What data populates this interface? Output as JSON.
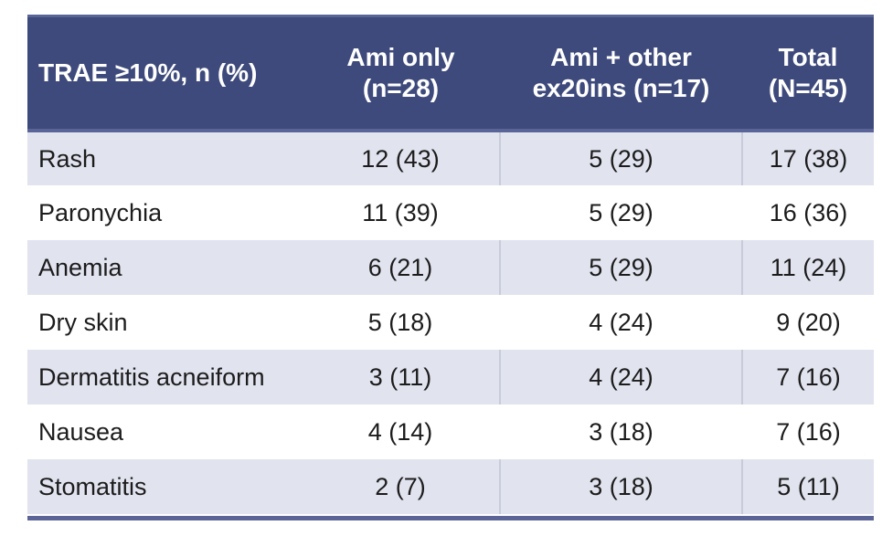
{
  "colors": {
    "header_bg": "#3e4a7b",
    "header_text": "#ffffff",
    "accent_rule": "#5a6496",
    "row_shaded_bg": "#e1e3ef",
    "row_plain_bg": "#ffffff",
    "body_text": "#1c1c1c",
    "column_separator": "#c8cbdb"
  },
  "table": {
    "header": {
      "col1": {
        "line1": "TRAE ≥10%, n (%)"
      },
      "col2": {
        "line1": "Ami only",
        "line2": "(n=28)"
      },
      "col3": {
        "line1": "Ami + other",
        "line2": "ex20ins (n=17)"
      },
      "col4": {
        "line1": "Total",
        "line2": "(N=45)"
      }
    },
    "rows": [
      {
        "label": "Rash",
        "ami_only": "12 (43)",
        "ami_other": "5 (29)",
        "total": "17 (38)"
      },
      {
        "label": "Paronychia",
        "ami_only": "11 (39)",
        "ami_other": "5 (29)",
        "total": "16 (36)"
      },
      {
        "label": "Anemia",
        "ami_only": "6 (21)",
        "ami_other": "5 (29)",
        "total": "11 (24)"
      },
      {
        "label": "Dry skin",
        "ami_only": "5 (18)",
        "ami_other": "4 (24)",
        "total": "9 (20)"
      },
      {
        "label": "Dermatitis acneiform",
        "ami_only": "3 (11)",
        "ami_other": "4 (24)",
        "total": "7 (16)"
      },
      {
        "label": "Nausea",
        "ami_only": "4 (14)",
        "ami_other": "3 (18)",
        "total": "7 (16)"
      },
      {
        "label": "Stomatitis",
        "ami_only": "2 (7)",
        "ami_other": "3 (18)",
        "total": "5 (11)"
      }
    ]
  }
}
